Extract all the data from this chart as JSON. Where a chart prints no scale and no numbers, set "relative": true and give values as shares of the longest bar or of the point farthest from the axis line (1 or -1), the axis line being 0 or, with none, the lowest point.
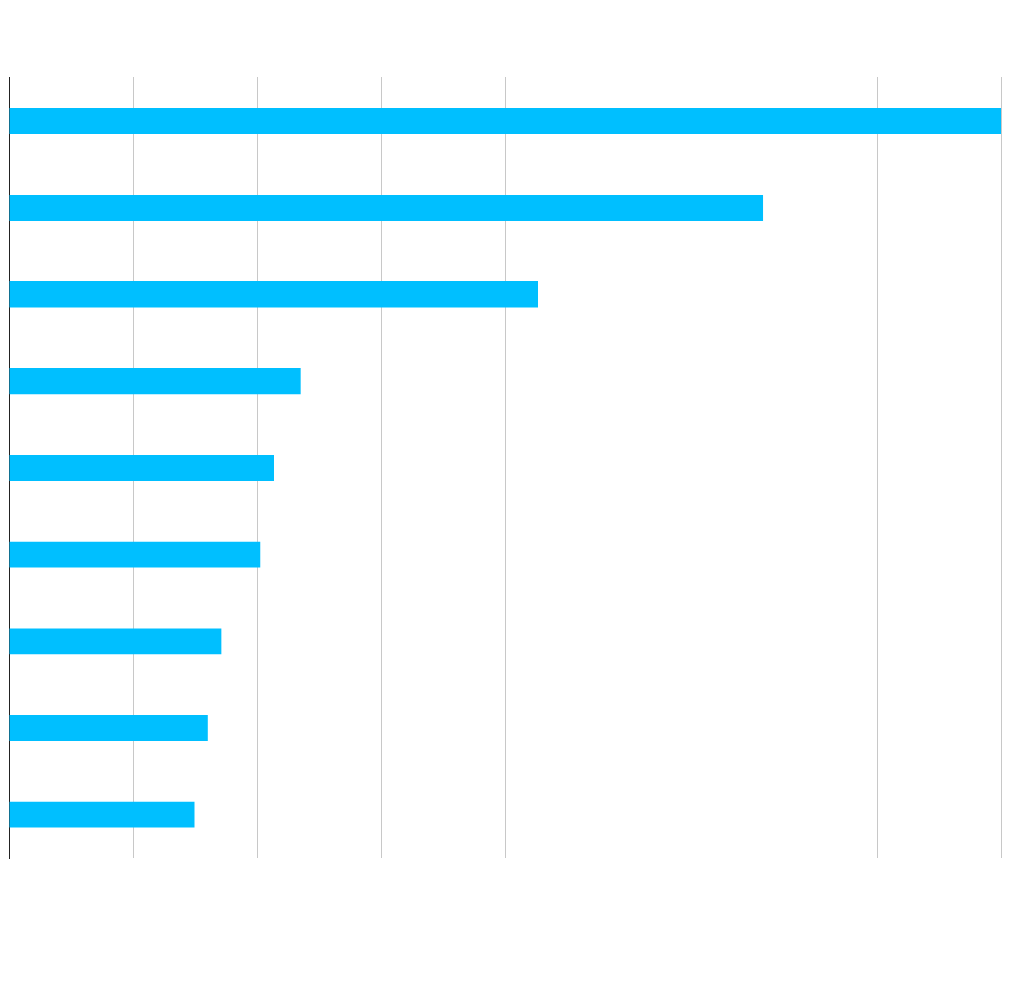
{
  "chart_data": {
    "type": "bar",
    "orientation": "horizontal",
    "relative": true,
    "categories": [
      null,
      null,
      null,
      null,
      null,
      null,
      null,
      null,
      null
    ],
    "values": [
      1,
      0.76,
      0.533,
      0.294,
      0.267,
      0.253,
      0.214,
      0.2,
      0.187
    ],
    "color": "#00bfff",
    "grid": "x",
    "legend": false
  }
}
